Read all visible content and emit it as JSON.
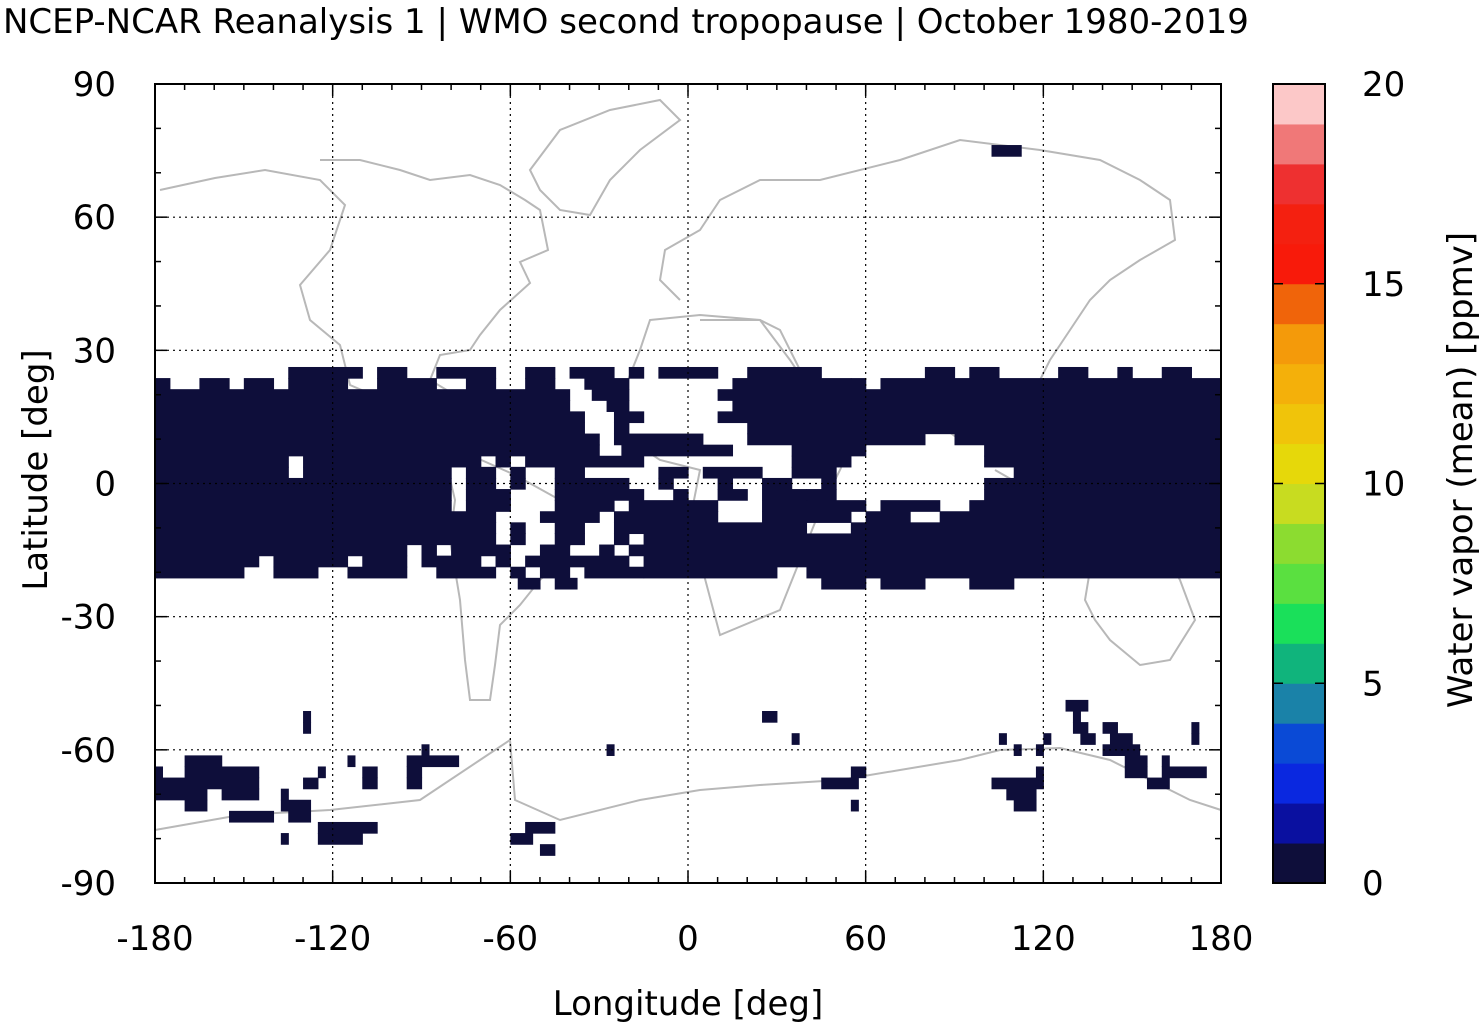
{
  "chart_data": {
    "type": "heatmap",
    "title": "NCEP-NCAR Reanalysis 1 | WMO second tropopause | October 1980-2019",
    "xlabel": "Longitude [deg]",
    "ylabel": "Latitude [deg]",
    "xlim": [
      -180,
      180
    ],
    "ylim": [
      -90,
      90
    ],
    "x_ticks": [
      "-180",
      "-120",
      "-60",
      "0",
      "60",
      "120",
      "180"
    ],
    "y_ticks": [
      "90",
      "60",
      "30",
      "0",
      "-30",
      "-60",
      "-90"
    ],
    "grid": "dotted",
    "background_map": "coastlines (gray)",
    "colorbar": {
      "label": "Water vapor (mean) [ppmv]",
      "range": [
        0,
        20
      ],
      "ticks": [
        "0",
        "5",
        "10",
        "15",
        "20"
      ],
      "colors": [
        "#0e0e3a",
        "#0a10a0",
        "#0a28e0",
        "#0a4ad6",
        "#1a82a8",
        "#10b47c",
        "#1ae05a",
        "#5ae040",
        "#8cdc30",
        "#c8dc20",
        "#e6d80a",
        "#f0c40a",
        "#f4b00a",
        "#f49a0a",
        "#f0640a",
        "#f81a0a",
        "#f42010",
        "#ee3030",
        "#f07878",
        "#fcc8c8"
      ]
    },
    "cells": {
      "dlon": 2.5,
      "dlat": 2.5,
      "value_ppmv": 0.2,
      "rows": [
        {
          "lat": 25,
          "spans": [
            [
              -135,
              -110
            ],
            [
              -105,
              -95
            ],
            [
              -85,
              -65
            ],
            [
              -55,
              -45
            ],
            [
              -40,
              -25
            ],
            [
              -20,
              -15
            ],
            [
              -10,
              10
            ],
            [
              20,
              45
            ],
            [
              80,
              90
            ],
            [
              95,
              105
            ],
            [
              125,
              135
            ],
            [
              145,
              150
            ],
            [
              160,
              170
            ]
          ]
        },
        {
          "lat": 22.5,
          "spans": [
            [
              -180,
              -175
            ],
            [
              -165,
              -155
            ],
            [
              -150,
              -140
            ],
            [
              -135,
              -115
            ],
            [
              -105,
              -85
            ],
            [
              -75,
              -65
            ],
            [
              -55,
              -45
            ],
            [
              -35,
              -20
            ],
            [
              15,
              55
            ],
            [
              55,
              60
            ],
            [
              65,
              180
            ]
          ]
        },
        {
          "lat": 20,
          "spans": [
            [
              -180,
              -40
            ],
            [
              -32.5,
              -20
            ],
            [
              10,
              180
            ]
          ]
        },
        {
          "lat": 17.5,
          "spans": [
            [
              -180,
              -40
            ],
            [
              -27.5,
              -20
            ],
            [
              15,
              180
            ]
          ]
        },
        {
          "lat": 15,
          "spans": [
            [
              -180,
              -35
            ],
            [
              -25,
              -15
            ],
            [
              10,
              180
            ]
          ]
        },
        {
          "lat": 12.5,
          "spans": [
            [
              -180,
              -35
            ],
            [
              -25,
              -20
            ],
            [
              20,
              180
            ]
          ]
        },
        {
          "lat": 10,
          "spans": [
            [
              -180,
              -30
            ],
            [
              -25,
              5
            ],
            [
              20,
              80
            ],
            [
              90,
              180
            ]
          ]
        },
        {
          "lat": 7.5,
          "spans": [
            [
              -180,
              -30
            ],
            [
              -22.5,
              15
            ],
            [
              35,
              60
            ],
            [
              100,
              180
            ]
          ]
        },
        {
          "lat": 5,
          "spans": [
            [
              -180,
              -135
            ],
            [
              -130,
              -70
            ],
            [
              -65,
              -60
            ],
            [
              -55,
              -15
            ],
            [
              35,
              55
            ],
            [
              100,
              180
            ]
          ]
        },
        {
          "lat": 2.5,
          "spans": [
            [
              -180,
              -135
            ],
            [
              -130,
              -80
            ],
            [
              -75,
              -65
            ],
            [
              -60,
              -55
            ],
            [
              -45,
              -35
            ],
            [
              -10,
              0
            ],
            [
              5,
              25
            ],
            [
              35,
              50
            ],
            [
              110,
              180
            ]
          ]
        },
        {
          "lat": 0,
          "spans": [
            [
              -180,
              -80
            ],
            [
              -75,
              -65
            ],
            [
              -60,
              -55
            ],
            [
              -45,
              -20
            ],
            [
              -10,
              -5
            ],
            [
              10,
              15
            ],
            [
              25,
              35
            ],
            [
              45,
              50
            ],
            [
              100,
              180
            ]
          ]
        },
        {
          "lat": -2.5,
          "spans": [
            [
              -180,
              -80
            ],
            [
              -75,
              -60
            ],
            [
              -45,
              -15
            ],
            [
              -5,
              0
            ],
            [
              10,
              20
            ],
            [
              25,
              40
            ],
            [
              40,
              50
            ],
            [
              100,
              180
            ]
          ]
        },
        {
          "lat": -5,
          "spans": [
            [
              -180,
              -80
            ],
            [
              -75,
              -60
            ],
            [
              -45,
              -25
            ],
            [
              -20,
              10
            ],
            [
              25,
              40
            ],
            [
              40,
              60
            ],
            [
              65,
              85
            ],
            [
              95,
              180
            ]
          ]
        },
        {
          "lat": -7.5,
          "spans": [
            [
              -180,
              -65
            ],
            [
              -50,
              -30
            ],
            [
              -25,
              10
            ],
            [
              25,
              55
            ],
            [
              60,
              75
            ],
            [
              85,
              180
            ]
          ]
        },
        {
          "lat": -10,
          "spans": [
            [
              -180,
              -65
            ],
            [
              -60,
              -55
            ],
            [
              -45,
              -35
            ],
            [
              -25,
              40
            ],
            [
              55,
              180
            ]
          ]
        },
        {
          "lat": -12.5,
          "spans": [
            [
              -180,
              -65
            ],
            [
              -60,
              -55
            ],
            [
              -45,
              -35
            ],
            [
              -25,
              -20
            ],
            [
              -15,
              180
            ]
          ]
        },
        {
          "lat": -15,
          "spans": [
            [
              -180,
              -95
            ],
            [
              -90,
              -85
            ],
            [
              -80,
              -60
            ],
            [
              -50,
              -40
            ],
            [
              -30,
              -25
            ],
            [
              -20,
              180
            ]
          ]
        },
        {
          "lat": -17.5,
          "spans": [
            [
              -180,
              -145
            ],
            [
              -140,
              -115
            ],
            [
              -110,
              -95
            ],
            [
              -90,
              -70
            ],
            [
              -65,
              -60
            ],
            [
              -55,
              -20
            ],
            [
              -15,
              180
            ]
          ]
        },
        {
          "lat": -20,
          "spans": [
            [
              -180,
              -150
            ],
            [
              -140,
              -125
            ],
            [
              -115,
              -95
            ],
            [
              -85,
              -65
            ],
            [
              -60,
              -55
            ],
            [
              -50,
              -40
            ],
            [
              -35,
              -15
            ],
            [
              -15,
              30
            ],
            [
              40,
              180
            ]
          ]
        },
        {
          "lat": -22.5,
          "spans": [
            [
              -55,
              -50
            ],
            [
              -45,
              -37.5
            ],
            [
              -57.5,
              -55
            ],
            [
              45,
              60
            ],
            [
              65,
              80
            ],
            [
              95,
              110
            ]
          ]
        },
        {
          "lat": -50,
          "spans": [
            [
              127.5,
              135
            ]
          ]
        },
        {
          "lat": -52.5,
          "spans": [
            [
              -130,
              -127.5
            ],
            [
              25,
              30
            ],
            [
              130,
              132.5
            ]
          ]
        },
        {
          "lat": -55,
          "spans": [
            [
              -130,
              -127.5
            ],
            [
              130,
              135
            ],
            [
              140,
              145
            ],
            [
              170,
              172.5
            ]
          ]
        },
        {
          "lat": -57.5,
          "spans": [
            [
              35,
              37.5
            ],
            [
              105,
              107.5
            ],
            [
              120,
              122.5
            ],
            [
              132.5,
              137.5
            ],
            [
              142.5,
              150
            ],
            [
              170,
              172.5
            ]
          ]
        },
        {
          "lat": -60,
          "spans": [
            [
              -90,
              -87.5
            ],
            [
              -27.5,
              -25
            ],
            [
              110,
              112.5
            ],
            [
              117.5,
              120
            ],
            [
              140,
              152.5
            ]
          ]
        },
        {
          "lat": -62.5,
          "spans": [
            [
              -170,
              -157.5
            ],
            [
              -115,
              -112.5
            ],
            [
              -95,
              -77.5
            ],
            [
              147.5,
              155
            ],
            [
              160,
              162.5
            ]
          ]
        },
        {
          "lat": -65,
          "spans": [
            [
              -180,
              -177.5
            ],
            [
              -170,
              -145
            ],
            [
              -125,
              -122.5
            ],
            [
              -110,
              -105
            ],
            [
              -95,
              -90
            ],
            [
              55,
              60
            ],
            [
              117.5,
              120
            ],
            [
              147.5,
              155
            ],
            [
              160,
              175
            ]
          ]
        },
        {
          "lat": -67.5,
          "spans": [
            [
              -180,
              -145
            ],
            [
              -130,
              -125
            ],
            [
              -110,
              -105
            ],
            [
              -95,
              -90
            ],
            [
              45,
              57.5
            ],
            [
              102.5,
              117.5
            ],
            [
              117.5,
              120
            ],
            [
              155,
              162.5
            ]
          ]
        },
        {
          "lat": -70,
          "spans": [
            [
              -180,
              -162.5
            ],
            [
              -157.5,
              -145
            ],
            [
              -137.5,
              -135
            ],
            [
              107.5,
              117.5
            ]
          ]
        },
        {
          "lat": -72.5,
          "spans": [
            [
              -170,
              -162.5
            ],
            [
              -137.5,
              -127.5
            ],
            [
              55,
              57.5
            ],
            [
              110,
              117.5
            ]
          ]
        },
        {
          "lat": -75,
          "spans": [
            [
              -155,
              -140
            ],
            [
              -135,
              -127.5
            ]
          ]
        },
        {
          "lat": -77.5,
          "spans": [
            [
              -125,
              -105
            ],
            [
              -55,
              -45
            ]
          ]
        },
        {
          "lat": -80,
          "spans": [
            [
              -137.5,
              -135
            ],
            [
              -125,
              -110
            ],
            [
              -60,
              -52.5
            ]
          ]
        },
        {
          "lat": -82.5,
          "spans": [
            [
              -50,
              -45
            ]
          ]
        },
        {
          "lat": 75,
          "spans": [
            [
              102.5,
              112.5
            ]
          ]
        }
      ]
    }
  }
}
